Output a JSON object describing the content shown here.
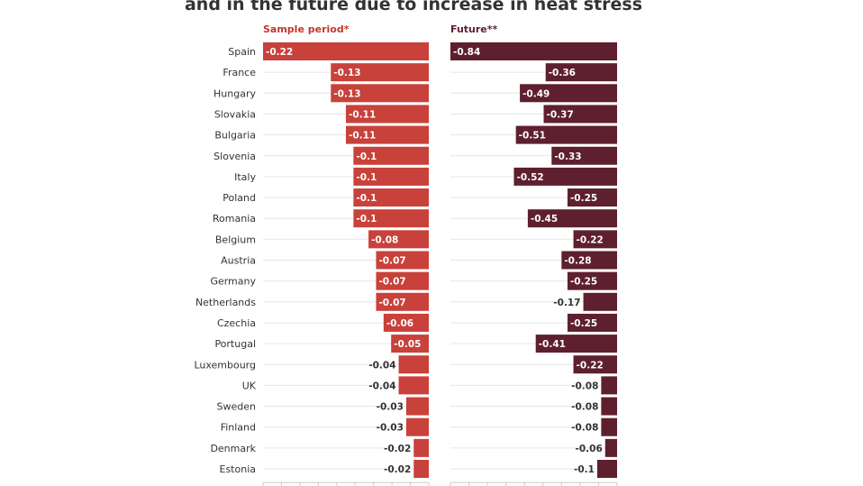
{
  "title": "and in the future due to increase in heat stress",
  "chart_data": {
    "type": "bar",
    "orientation": "horizontal",
    "categories": [
      "Spain",
      "France",
      "Hungary",
      "Slovakia",
      "Bulgaria",
      "Slovenia",
      "Italy",
      "Poland",
      "Romania",
      "Belgium",
      "Austria",
      "Germany",
      "Netherlands",
      "Czechia",
      "Portugal",
      "Luxembourg",
      "UK",
      "Sweden",
      "Finland",
      "Denmark",
      "Estonia"
    ],
    "series": [
      {
        "name": "Sample period*",
        "color": "#c8413a",
        "values": [
          -0.22,
          -0.13,
          -0.13,
          -0.11,
          -0.11,
          -0.1,
          -0.1,
          -0.1,
          -0.1,
          -0.08,
          -0.07,
          -0.07,
          -0.07,
          -0.06,
          -0.05,
          -0.04,
          -0.04,
          -0.03,
          -0.03,
          -0.02,
          -0.02
        ],
        "labels": [
          "-0.22",
          "-0.13",
          "-0.13",
          "-0.11",
          "-0.11",
          "-0.1",
          "-0.1",
          "-0.1",
          "-0.1",
          "-0.08",
          "-0.07",
          "-0.07",
          "-0.07",
          "-0.06",
          "-0.05",
          "-0.04",
          "-0.04",
          "-0.03",
          "-0.03",
          "-0.02",
          "-0.02"
        ]
      },
      {
        "name": "Future**",
        "color": "#5e1f2e",
        "values": [
          -0.84,
          -0.36,
          -0.49,
          -0.37,
          -0.51,
          -0.33,
          -0.52,
          -0.25,
          -0.45,
          -0.22,
          -0.28,
          -0.25,
          -0.17,
          -0.25,
          -0.41,
          -0.22,
          -0.08,
          -0.08,
          -0.08,
          -0.06,
          -0.1
        ],
        "labels": [
          "-0.84",
          "-0.36",
          "-0.49",
          "-0.37",
          "-0.51",
          "-0.33",
          "-0.52",
          "-0.25",
          "-0.45",
          "-0.22",
          "-0.28",
          "-0.25",
          "-0.17",
          "-0.25",
          "-0.41",
          "-0.22",
          "-0.08",
          "-0.08",
          "-0.08",
          "-0.06",
          "-0.1"
        ]
      }
    ],
    "xlim": [
      -0.9,
      0
    ],
    "grid": true,
    "legend": "panel titles top-left"
  }
}
